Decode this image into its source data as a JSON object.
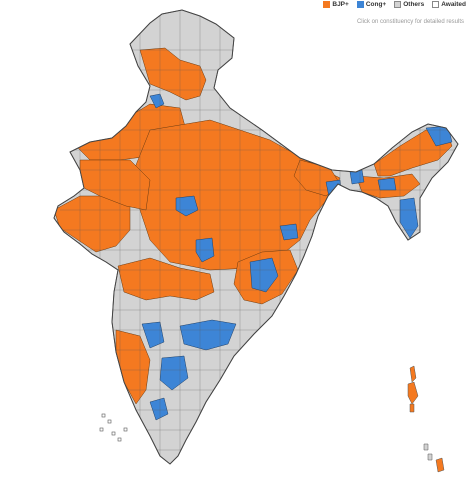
{
  "legend": {
    "items": [
      {
        "label": "BJP+",
        "color": "#f47920"
      },
      {
        "label": "Cong+",
        "color": "#3d85d6"
      },
      {
        "label": "Others",
        "color": "#d3d3d3"
      },
      {
        "label": "Awaited",
        "color": "#ffffff"
      }
    ]
  },
  "hint_text": "Click on constituency for detailed results",
  "colors": {
    "bjp": "#f47920",
    "cong": "#3d85d6",
    "others": "#d3d3d3",
    "awaited": "#ffffff",
    "border": "#555555"
  }
}
